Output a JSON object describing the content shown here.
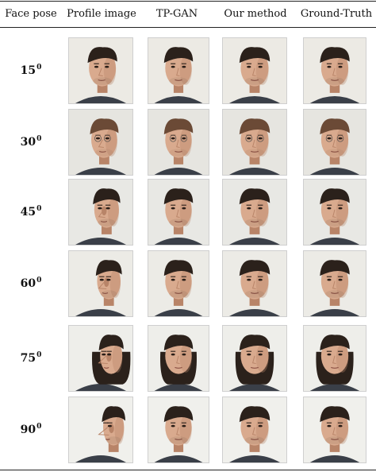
{
  "header": {
    "face_pose": "Face pose",
    "profile_image": "Profile image",
    "tp_gan": "TP-GAN",
    "our_method": "Our method",
    "ground_truth": "Ground-Truth"
  },
  "rows": [
    {
      "angle": "15",
      "degree_mark": "0"
    },
    {
      "angle": "30",
      "degree_mark": "0"
    },
    {
      "angle": "45",
      "degree_mark": "0"
    },
    {
      "angle": "60",
      "degree_mark": "0"
    },
    {
      "angle": "75",
      "degree_mark": "0"
    },
    {
      "angle": "90",
      "degree_mark": "0"
    }
  ],
  "colors": {
    "background": "#e9e9e4",
    "skin": "#d9aa8e",
    "skin_shade": "#b88468",
    "hair_dark": "#2b211b",
    "hair_brown": "#6b4a36",
    "shirt": "#3a3f48"
  }
}
